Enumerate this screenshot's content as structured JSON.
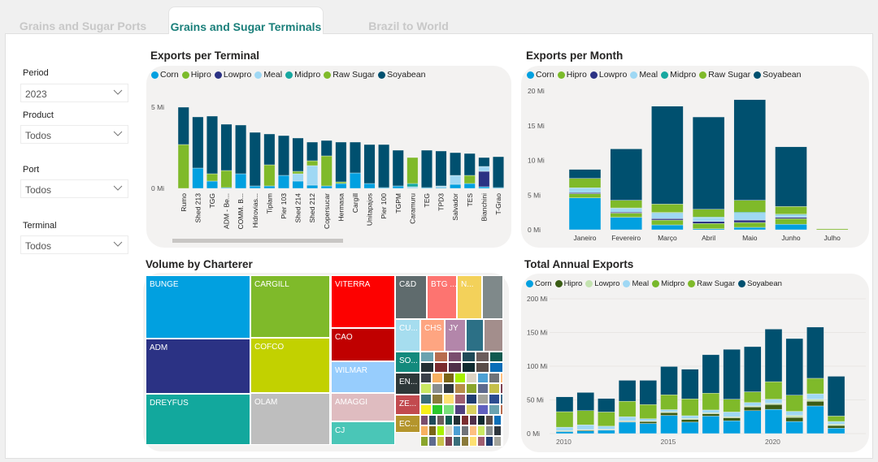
{
  "tabs": [
    {
      "label": "Grains and Sugar Ports",
      "active": false
    },
    {
      "label": "Grains and Sugar Terminals",
      "active": true
    },
    {
      "label": "Brazil to World",
      "active": false
    }
  ],
  "filters": {
    "period": {
      "label": "Period",
      "value": "2023"
    },
    "product": {
      "label": "Product",
      "value": "Todos"
    },
    "port": {
      "label": "Port",
      "value": "Todos"
    },
    "terminal": {
      "label": "Terminal",
      "value": "Todos"
    }
  },
  "colors": {
    "Corn": "#01a0e0",
    "Hipro": "#7bbb2b",
    "Lowpro": "#2b3284",
    "Meal": "#9fd8f4",
    "Midpro": "#17a8a0",
    "Raw Sugar": "#7fba2a",
    "Soyabean": "#00506f",
    "Hipro_annual": "#3a5c14",
    "Lowpro_annual": "#c4e3b0",
    "Midpro_annual": "#77b82b"
  },
  "chart_data": [
    {
      "id": "terminal",
      "type": "bar",
      "stacked": true,
      "title": "Exports per Terminal",
      "legend": [
        "Corn",
        "Hipro",
        "Lowpro",
        "Meal",
        "Midpro",
        "Raw Sugar",
        "Soyabean"
      ],
      "yticks": [
        "0 Mi",
        "5 Mi"
      ],
      "ylim": [
        0,
        5
      ],
      "categories": [
        "Rumo",
        "Shed 213",
        "TGG",
        "ADM - Be...",
        "COMM. B...",
        "Hidrovias...",
        "Tiplam",
        "Pier 103",
        "Shed 214",
        "Shed 212",
        "Copersucar",
        "Hermasa",
        "Cargill",
        "Unitapajos",
        "Pier 100",
        "TGPM",
        "Caramuru",
        "TEG",
        "TPD3",
        "Salvador",
        "TES",
        "Bianchini",
        "T-Grao"
      ],
      "series": [
        {
          "name": "Corn",
          "values": [
            0,
            1.25,
            0.45,
            0.05,
            0.9,
            0.15,
            0.15,
            0.8,
            0.45,
            0.2,
            0.15,
            0.3,
            0.95,
            0.3,
            0.05,
            0.15,
            0,
            0.05,
            0.05,
            0.25,
            0.3,
            0.1,
            0.05
          ]
        },
        {
          "name": "Hipro",
          "values": [
            0,
            0,
            0,
            0,
            0,
            0,
            0,
            0,
            0,
            0,
            0,
            0,
            0,
            0,
            0,
            0,
            0,
            0,
            0,
            0,
            0,
            0,
            0
          ]
        },
        {
          "name": "Lowpro",
          "values": [
            0,
            0,
            0,
            0,
            0,
            0,
            0,
            0,
            0,
            0,
            0,
            0,
            0,
            0,
            0,
            0,
            0,
            0,
            0,
            0,
            0,
            0.95,
            0
          ]
        },
        {
          "name": "Meal",
          "values": [
            0,
            0,
            0,
            0,
            0,
            0,
            0,
            0,
            0.45,
            1.2,
            0,
            0,
            0,
            0,
            0,
            0,
            0.1,
            0,
            0.1,
            0.55,
            0,
            0.3,
            0
          ]
        },
        {
          "name": "Midpro",
          "values": [
            0,
            0,
            0,
            0,
            0,
            0,
            0,
            0,
            0,
            0,
            0,
            0,
            0,
            0,
            0,
            0,
            0.2,
            0,
            0,
            0,
            0,
            0,
            0
          ]
        },
        {
          "name": "Raw Sugar",
          "values": [
            2.7,
            0,
            0.45,
            1.05,
            0,
            0,
            1.3,
            0,
            0.15,
            0.3,
            1.85,
            0.1,
            0,
            0,
            0,
            0,
            1.6,
            0,
            0,
            0,
            0.5,
            0,
            0
          ]
        },
        {
          "name": "Soyabean",
          "values": [
            2.3,
            3.15,
            3.55,
            2.85,
            3.0,
            3.3,
            1.9,
            2.45,
            2.05,
            1.15,
            0.95,
            2.45,
            1.9,
            2.4,
            2.65,
            2.2,
            0,
            2.3,
            2.15,
            1.4,
            1.35,
            0.55,
            1.9
          ]
        }
      ]
    },
    {
      "id": "month",
      "type": "bar",
      "stacked": true,
      "title": "Exports per Month",
      "legend": [
        "Corn",
        "Hipro",
        "Lowpro",
        "Meal",
        "Midpro",
        "Raw Sugar",
        "Soyabean"
      ],
      "yticks": [
        "0 Mi",
        "5 Mi",
        "10 Mi",
        "15 Mi",
        "20 Mi"
      ],
      "ylim": [
        0,
        20
      ],
      "categories": [
        "Janeiro",
        "Fevereiro",
        "Março",
        "Abril",
        "Maio",
        "Junho",
        "Julho"
      ],
      "series": [
        {
          "name": "Corn",
          "values": [
            4.6,
            1.8,
            0.7,
            0.15,
            0.35,
            0.8,
            0
          ]
        },
        {
          "name": "Hipro",
          "values": [
            0.6,
            0.6,
            0.7,
            0.75,
            0.7,
            0.8,
            0
          ]
        },
        {
          "name": "Lowpro",
          "values": [
            0.15,
            0.15,
            0.2,
            0.3,
            0.35,
            0.2,
            0
          ]
        },
        {
          "name": "Meal",
          "values": [
            0.7,
            0.55,
            0.8,
            0.55,
            1.0,
            0.4,
            0
          ]
        },
        {
          "name": "Midpro",
          "values": [
            0,
            0.05,
            0.1,
            0.1,
            0.15,
            0.05,
            0
          ]
        },
        {
          "name": "Raw Sugar",
          "values": [
            1.35,
            1.1,
            1.2,
            1.1,
            1.7,
            1.1,
            0.15
          ]
        },
        {
          "name": "Soyabean",
          "values": [
            1.3,
            7.4,
            14.1,
            13.3,
            14.5,
            8.6,
            0
          ]
        }
      ]
    },
    {
      "id": "annual",
      "type": "bar",
      "stacked": true,
      "title": "Total Annual Exports",
      "legend": [
        "Corn",
        "Hipro",
        "Lowpro",
        "Meal",
        "Midpro",
        "Raw Sugar",
        "Soyabean"
      ],
      "yticks": [
        "0 Mi",
        "50 Mi",
        "100 Mi",
        "150 Mi",
        "200 Mi"
      ],
      "xticks": [
        "2010",
        "2015",
        "2020"
      ],
      "ylim": [
        0,
        200
      ],
      "gridlines": true,
      "categories": [
        2010,
        2011,
        2012,
        2013,
        2014,
        2015,
        2016,
        2017,
        2018,
        2019,
        2020,
        2021,
        2022,
        2023
      ],
      "series": [
        {
          "name": "Corn",
          "values": [
            3,
            4,
            5,
            17,
            15,
            27,
            17,
            26,
            19,
            34,
            36,
            18,
            41,
            8
          ]
        },
        {
          "name": "Hipro",
          "values": [
            1,
            1.5,
            1,
            1,
            3,
            4,
            4,
            3.5,
            4.5,
            5.5,
            7,
            6,
            7,
            4
          ]
        },
        {
          "name": "Lowpro",
          "values": [
            0.5,
            0.5,
            0.5,
            1,
            1,
            1.5,
            1.5,
            1.5,
            1.5,
            1.5,
            2,
            3,
            3,
            2
          ]
        },
        {
          "name": "Meal",
          "values": [
            5,
            7,
            4.5,
            6,
            3,
            3,
            4,
            4,
            7,
            5,
            6,
            6,
            8,
            4
          ]
        },
        {
          "name": "Midpro",
          "values": [
            0,
            0,
            0,
            0,
            0,
            0,
            0,
            0,
            0,
            0,
            0,
            0,
            0,
            0
          ]
        },
        {
          "name": "Raw Sugar",
          "values": [
            23,
            21,
            21,
            23,
            21,
            22,
            25,
            25,
            19,
            16,
            26,
            24,
            23,
            8
          ]
        },
        {
          "name": "Soyabean",
          "values": [
            22,
            27,
            20,
            31,
            36,
            42,
            44,
            57,
            74,
            67,
            78,
            84,
            76,
            59
          ]
        }
      ]
    }
  ],
  "treemap": {
    "title": "Volume by Charterer",
    "cells": [
      {
        "label": "BUNGE",
        "color": "#01a0e0"
      },
      {
        "label": "ADM",
        "color": "#2b3284"
      },
      {
        "label": "DREYFUS",
        "color": "#12a89d"
      },
      {
        "label": "CARGILL",
        "color": "#7fba2a"
      },
      {
        "label": "COFCO",
        "color": "#c2d100"
      },
      {
        "label": "OLAM",
        "color": "#bebebe"
      },
      {
        "label": "VITERRA",
        "color": "#fd0100"
      },
      {
        "label": "CAO",
        "color": "#c00000"
      },
      {
        "label": "WILMAR",
        "color": "#97cdfd"
      },
      {
        "label": "AMAGGI",
        "color": "#dfbcc0"
      },
      {
        "label": "CJ",
        "color": "#4ac6b7"
      },
      {
        "label": "C&D",
        "color": "#5f6b6d"
      },
      {
        "label": "BTG ...",
        "color": "#fd7470"
      },
      {
        "label": "N...",
        "color": "#f3d15a"
      },
      {
        "label": "",
        "color": "#7f898a"
      },
      {
        "label": "CU...",
        "color": "#a6ddef"
      },
      {
        "label": "CHS",
        "color": "#fea581"
      },
      {
        "label": "JY",
        "color": "#b386aa"
      },
      {
        "label": "",
        "color": "#2c7086"
      },
      {
        "label": "",
        "color": "#a38e8c"
      },
      {
        "label": "SO...",
        "color": "#138a7d"
      },
      {
        "label": "EN...",
        "color": "#2d3738"
      },
      {
        "label": "ZE...",
        "color": "#c24a4f"
      },
      {
        "label": "EC...",
        "color": "#b4952c"
      }
    ]
  }
}
